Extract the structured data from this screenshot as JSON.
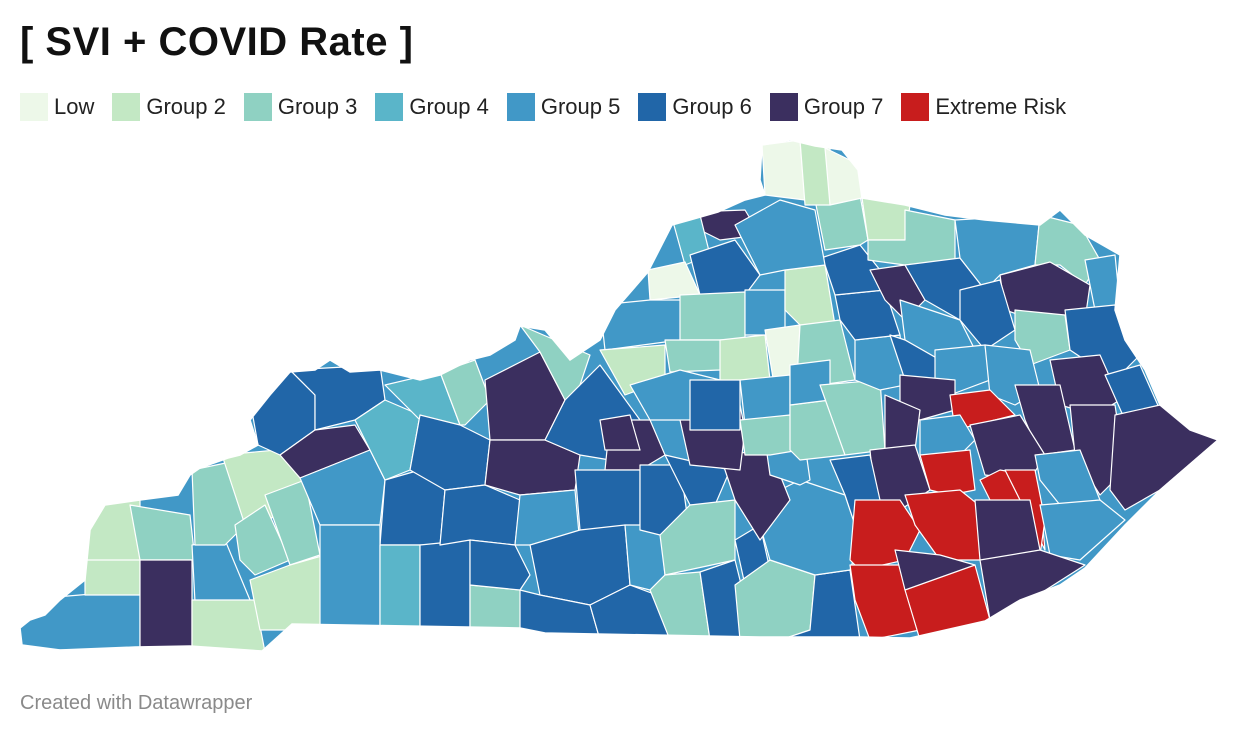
{
  "title": "[ SVI + COVID Rate ]",
  "legend": [
    {
      "label": "Low",
      "color": "#edf8e9"
    },
    {
      "label": "Group 2",
      "color": "#c3e8c4"
    },
    {
      "label": "Group 3",
      "color": "#8fd1c2"
    },
    {
      "label": "Group 4",
      "color": "#5ab5c9"
    },
    {
      "label": "Group 5",
      "color": "#4198c7"
    },
    {
      "label": "Group 6",
      "color": "#2166a8"
    },
    {
      "label": "Group 7",
      "color": "#3b2f5f"
    },
    {
      "label": "Extreme Risk",
      "color": "#c81d1d"
    }
  ],
  "footer": "Created with Datawrapper"
}
